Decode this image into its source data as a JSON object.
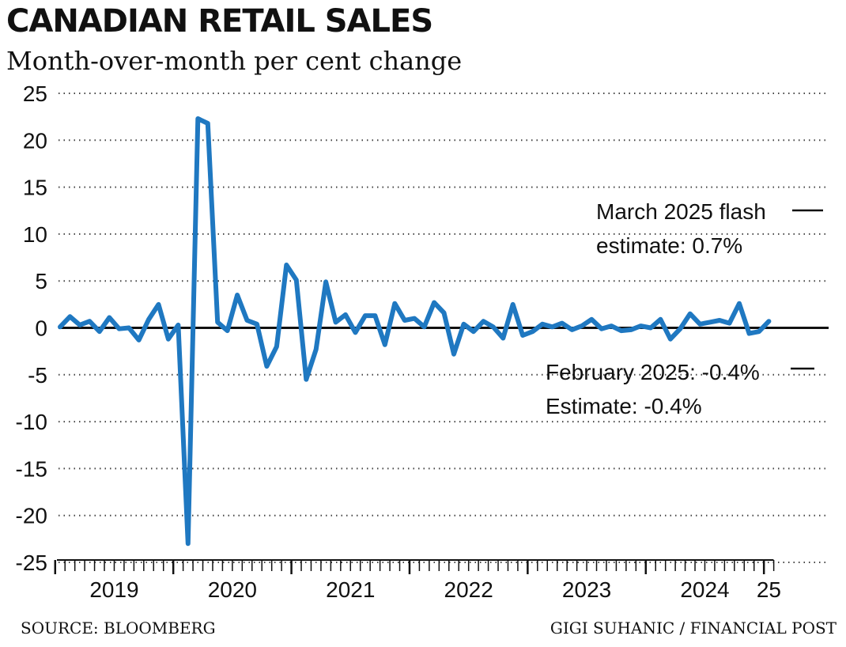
{
  "chart_data": {
    "type": "line",
    "title": "CANADIAN RETAIL SALES",
    "subtitle": "Month-over-month per cent change",
    "xlabel": "",
    "ylabel": "",
    "ylim": [
      -25,
      25
    ],
    "yticks": [
      "25",
      "20",
      "15",
      "10",
      "5",
      "0",
      "-5",
      "-10",
      "-15",
      "-20",
      "-25"
    ],
    "ytick_values": [
      25,
      20,
      15,
      10,
      5,
      0,
      -5,
      -10,
      -15,
      -20,
      -25
    ],
    "x_start": "2019-01",
    "x_end": "2025-03",
    "year_labels": [
      "2019",
      "2020",
      "2021",
      "2022",
      "2023",
      "2024",
      "25"
    ],
    "grid": true,
    "series": [
      {
        "name": "Month-over-month per cent change",
        "color": "#1f78c1",
        "values": [
          0.1,
          1.2,
          0.3,
          0.7,
          -0.4,
          1.1,
          -0.1,
          0.0,
          -1.3,
          0.9,
          2.5,
          -1.2,
          0.3,
          -23.0,
          22.3,
          21.8,
          0.6,
          -0.3,
          3.5,
          0.8,
          0.4,
          -4.1,
          -2.0,
          6.7,
          5.1,
          -5.5,
          -2.3,
          4.9,
          0.6,
          1.4,
          -0.5,
          1.3,
          1.3,
          -1.8,
          2.6,
          0.8,
          1.0,
          0.1,
          2.7,
          1.6,
          -2.8,
          0.4,
          -0.4,
          0.7,
          0.1,
          -1.1,
          2.5,
          -0.8,
          -0.4,
          0.4,
          0.1,
          0.5,
          -0.2,
          0.2,
          0.9,
          -0.1,
          0.2,
          -0.3,
          -0.2,
          0.2,
          0.0,
          0.9,
          -1.2,
          -0.1,
          1.5,
          0.4,
          0.6,
          0.8,
          0.5,
          2.6,
          -0.6,
          -0.4,
          0.7
        ]
      }
    ],
    "annotations": [
      {
        "lines": [
          "March 2025 flash",
          "estimate: 0.7%"
        ],
        "month_index": 74
      },
      {
        "lines": [
          "February 2025: -0.4%",
          "Estimate: -0.4%"
        ],
        "month_index": 73
      }
    ]
  },
  "footer": {
    "source": "SOURCE: BLOOMBERG",
    "credit": "GIGI SUHANIC / FINANCIAL POST"
  }
}
